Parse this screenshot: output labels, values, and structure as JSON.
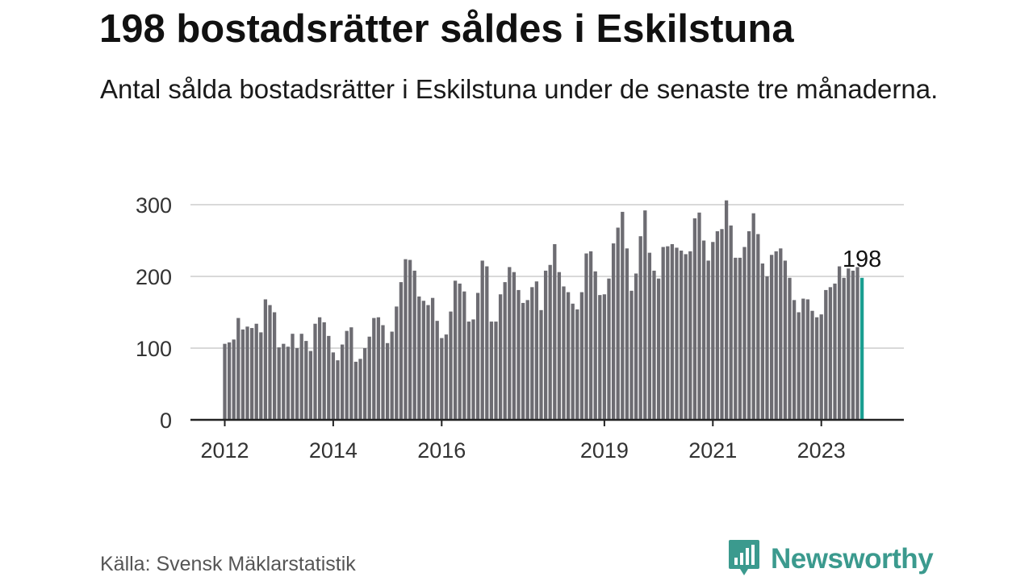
{
  "title": "198 bostadsrätter såldes i Eskilstuna",
  "subtitle": "Antal sålda bostadsrätter i Eskilstuna under de senaste tre månaderna.",
  "source": "Källa: Svensk Mäklarstatistik",
  "brand": {
    "name": "Newsworthy",
    "color": "#3b9a8e",
    "icon": "newsworthy-logo-icon"
  },
  "colors": {
    "bar": "#6d6c72",
    "highlight": "#1a9e91",
    "grid": "#d9d9d9",
    "axis": "#222222"
  },
  "chart_data": {
    "type": "bar",
    "title": "",
    "xlabel": "",
    "ylabel": "",
    "ylim": [
      0,
      300
    ],
    "yticks": [
      0,
      100,
      200,
      300
    ],
    "xticks": [
      "2012",
      "2014",
      "2016",
      "2019",
      "2021",
      "2023"
    ],
    "grid": true,
    "highlight_label": "198",
    "start": "2012-01",
    "values": [
      106,
      108,
      112,
      142,
      126,
      130,
      128,
      134,
      122,
      168,
      160,
      150,
      101,
      106,
      102,
      120,
      100,
      120,
      110,
      96,
      134,
      143,
      136,
      117,
      94,
      83,
      105,
      124,
      129,
      81,
      85,
      100,
      116,
      142,
      143,
      132,
      107,
      123,
      158,
      192,
      224,
      223,
      208,
      172,
      166,
      160,
      170,
      138,
      114,
      119,
      151,
      194,
      190,
      179,
      137,
      140,
      177,
      222,
      214,
      137,
      137,
      175,
      192,
      213,
      206,
      181,
      163,
      167,
      185,
      193,
      153,
      208,
      216,
      245,
      206,
      186,
      178,
      162,
      154,
      178,
      232,
      235,
      207,
      174,
      175,
      197,
      246,
      268,
      290,
      239,
      180,
      204,
      256,
      292,
      233,
      208,
      197,
      241,
      242,
      245,
      240,
      236,
      231,
      235,
      281,
      289,
      250,
      222,
      248,
      263,
      266,
      306,
      271,
      226,
      226,
      241,
      263,
      288,
      259,
      218,
      200,
      230,
      235,
      239,
      222,
      198,
      167,
      150,
      169,
      168,
      152,
      143,
      147,
      181,
      185,
      190,
      214,
      198,
      211,
      208,
      213,
      198
    ]
  }
}
